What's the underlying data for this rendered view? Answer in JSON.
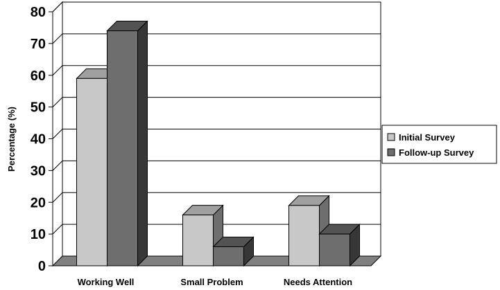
{
  "chart_data": {
    "type": "bar",
    "categories": [
      "Working Well",
      "Small Problem",
      "Needs Attention"
    ],
    "series": [
      {
        "name": "Initial Survey",
        "values": [
          59,
          16,
          19
        ],
        "color": "#c8c8c8"
      },
      {
        "name": "Follow-up Survey",
        "values": [
          74,
          6,
          10
        ],
        "color": "#6e6e6e"
      }
    ],
    "ylabel": "Percentage (%)",
    "ylim": [
      0,
      80
    ],
    "yticks": [
      "0",
      "10",
      "20",
      "30",
      "40",
      "50",
      "60",
      "70",
      "80"
    ],
    "grid": true,
    "legend_position": "right",
    "style": "3d-clustered-column"
  }
}
